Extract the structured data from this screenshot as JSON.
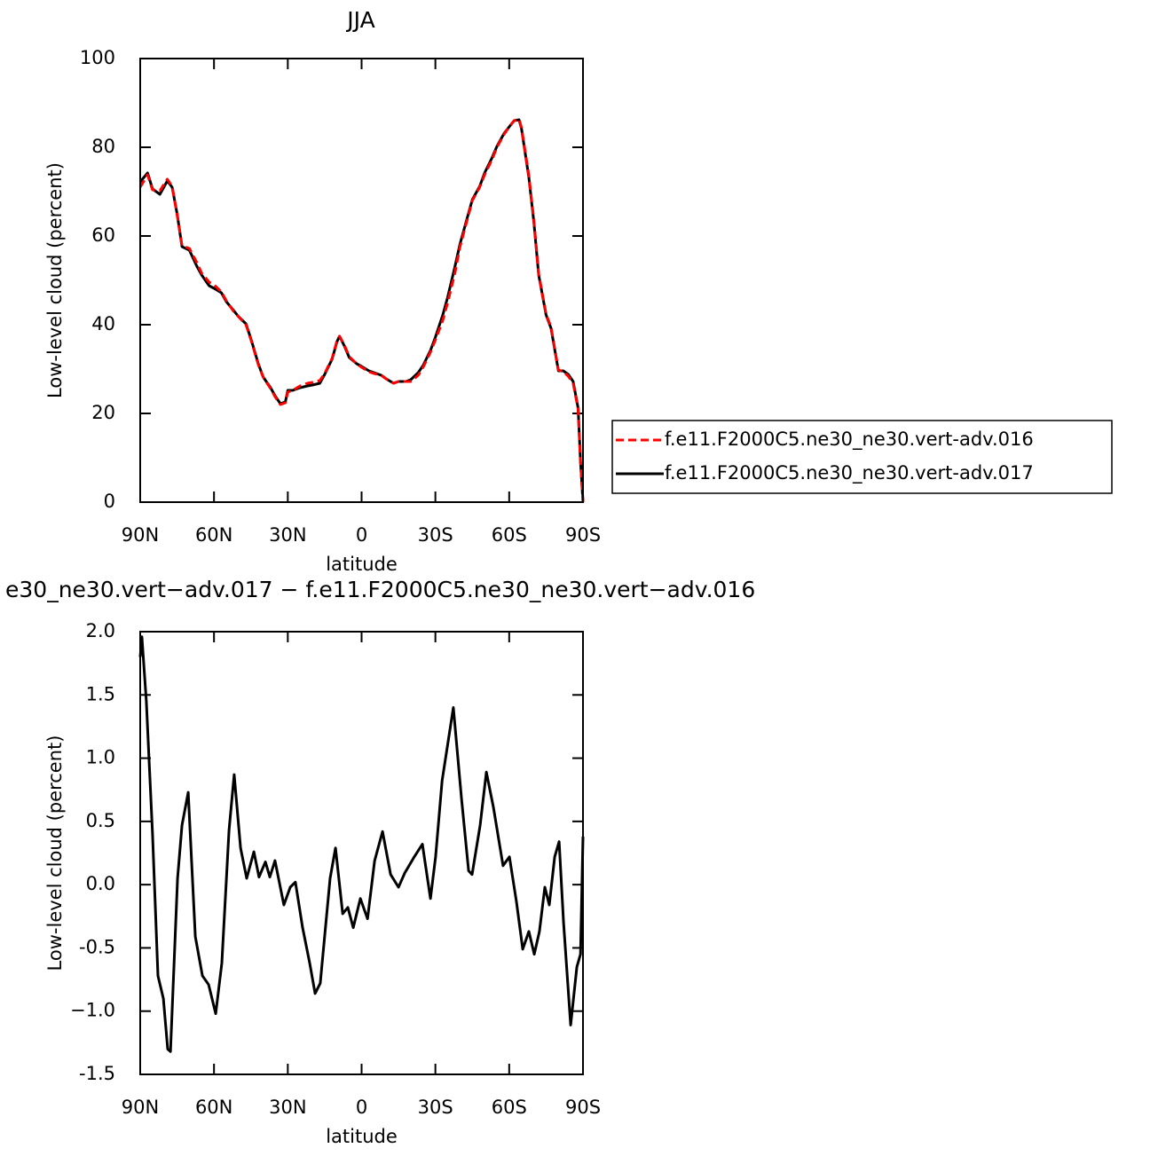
{
  "chart_data": [
    {
      "type": "line",
      "title": "JJA",
      "xlabel": "latitude",
      "ylabel": "Low-level cloud (percent)",
      "xlim": [
        90,
        -90
      ],
      "xticks": [
        {
          "value": 90,
          "label": "90N"
        },
        {
          "value": 60,
          "label": "60N"
        },
        {
          "value": 30,
          "label": "30N"
        },
        0,
        {
          "value": -30,
          "label": "30S"
        },
        {
          "value": -60,
          "label": "60S"
        },
        {
          "value": -90,
          "label": "90S"
        }
      ],
      "ylim": [
        0,
        100
      ],
      "yticks": [
        0,
        20,
        40,
        60,
        80,
        100
      ],
      "legend": "outside-right",
      "x": [
        90,
        87,
        85,
        82,
        79,
        77,
        75,
        73,
        70,
        67,
        65,
        62,
        60,
        57,
        55,
        52,
        50,
        47,
        45,
        42,
        40,
        37,
        35,
        33,
        31,
        30,
        28,
        25,
        22,
        20,
        17,
        15,
        12,
        10,
        9,
        7,
        5,
        2,
        0,
        -3,
        -5,
        -8,
        -10,
        -13,
        -15,
        -18,
        -20,
        -23,
        -25,
        -28,
        -30,
        -33,
        -35,
        -38,
        -40,
        -43,
        -45,
        -48,
        -50,
        -53,
        -55,
        -58,
        -60,
        -62,
        -64,
        -65,
        -68,
        -70,
        -72,
        -75,
        -77,
        -80,
        -82,
        -84,
        -86,
        -88,
        -89,
        -90
      ],
      "series": [
        {
          "name": "f.e11.F2000C5.ne30_ne30.vert-adv.016",
          "color": "#ff0000",
          "dash": true,
          "values": [
            71,
            73.8,
            70.4,
            70.2,
            72.8,
            71.2,
            64.8,
            57.8,
            57.2,
            54,
            51.6,
            49.6,
            49,
            47.4,
            45.4,
            43,
            41.8,
            40,
            36.6,
            31,
            28.2,
            25.6,
            23.6,
            22,
            22.4,
            24.8,
            25.2,
            26.2,
            26.8,
            27,
            27.4,
            29,
            32.4,
            36.4,
            37.4,
            35.4,
            32.8,
            31.2,
            30.4,
            29.4,
            29,
            28.6,
            27.8,
            26.8,
            27.2,
            27.2,
            27.2,
            28.6,
            30.4,
            33.8,
            36.6,
            41,
            45,
            51.8,
            57.6,
            63.8,
            68,
            71,
            73.8,
            77.2,
            80,
            83,
            84.6,
            86,
            86.4,
            84.4,
            73.6,
            63.6,
            51.4,
            42.4,
            39.4,
            29.8,
            29.4,
            28.4,
            26.8,
            21,
            9,
            0
          ]
        },
        {
          "name": "f.e11.F2000C5.ne30_ne30.vert-adv.017",
          "color": "#000000",
          "dash": false,
          "values": [
            72.2,
            74.2,
            70.6,
            69.4,
            72.4,
            71,
            65,
            57.6,
            56.8,
            53.2,
            51.2,
            48.8,
            48.2,
            47.2,
            45.2,
            43.2,
            41.8,
            40.2,
            36.8,
            31.2,
            28.2,
            25.8,
            23.8,
            22.2,
            22.6,
            25.2,
            25.2,
            25.8,
            26.2,
            26.4,
            26.8,
            28.8,
            32.2,
            36.2,
            37.4,
            35.2,
            32.6,
            31.2,
            30.6,
            29.6,
            29.2,
            28.6,
            27.8,
            26.8,
            27.2,
            27.2,
            27.6,
            29.2,
            30.8,
            34.2,
            37.2,
            42.2,
            46.2,
            53.2,
            58.2,
            64.2,
            68.2,
            71.2,
            74.2,
            77.6,
            80.2,
            83.2,
            84.6,
            86,
            86.2,
            84.2,
            73.2,
            63.2,
            51.2,
            42.2,
            39.2,
            29.6,
            29.6,
            28.8,
            27.2,
            21.2,
            9.2,
            0
          ]
        }
      ]
    },
    {
      "type": "line",
      "title": "e30_ne30.vert−adv.017 − f.e11.F2000C5.ne30_ne30.vert−adv.016",
      "xlabel": "latitude",
      "ylabel": "Low-level cloud (percent)",
      "xlim": [
        90,
        -90
      ],
      "xticks": [
        {
          "value": 90,
          "label": "90N"
        },
        {
          "value": 60,
          "label": "60N"
        },
        {
          "value": 30,
          "label": "30N"
        },
        0,
        {
          "value": -30,
          "label": "30S"
        },
        {
          "value": -60,
          "label": "60S"
        },
        {
          "value": -90,
          "label": "90S"
        }
      ],
      "ylim": [
        -1.5,
        2
      ],
      "yticks": [
        -1.5,
        {
          "value": -1,
          "label": "−1.0"
        },
        -0.5,
        {
          "value": 0,
          "label": "0.0"
        },
        0.5,
        {
          "value": 1,
          "label": "1.0"
        },
        1.5,
        {
          "value": 2,
          "label": "2.0"
        }
      ],
      "x": [
        90,
        89.3,
        87.5,
        85,
        82.8,
        80.6,
        78.8,
        77.7,
        74.8,
        73,
        70.5,
        67.6,
        64.7,
        62.2,
        59.3,
        56.8,
        53.9,
        51.8,
        49.2,
        46.7,
        43.8,
        41.7,
        39.1,
        37.3,
        35.2,
        31.6,
        29,
        26.9,
        24,
        21.1,
        18.9,
        16.8,
        12.8,
        10.6,
        7.7,
        5.6,
        3.4,
        0.5,
        -2.4,
        -5.3,
        -8.5,
        -11.8,
        -15,
        -17.5,
        -21.1,
        -24.7,
        -28,
        -30.1,
        -32.7,
        -37.3,
        -40.6,
        -43.5,
        -44.9,
        -48.2,
        -50.7,
        -53.6,
        -57.5,
        -60.1,
        -62.9,
        -65.5,
        -68,
        -70.2,
        -72.3,
        -74.5,
        -76.3,
        -78.5,
        -80.3,
        -82.1,
        -85,
        -87.5,
        -89,
        -90
      ],
      "series": [
        {
          "color": "#000000",
          "dash": false,
          "values": [
            1.8,
            1.96,
            1.45,
            0.4,
            -0.72,
            -0.9,
            -1.3,
            -1.32,
            0.05,
            0.47,
            0.73,
            -0.41,
            -0.72,
            -0.79,
            -1.02,
            -0.62,
            0.43,
            0.87,
            0.29,
            0.05,
            0.26,
            0.06,
            0.18,
            0.06,
            0.19,
            -0.16,
            -0.02,
            0.02,
            -0.34,
            -0.62,
            -0.86,
            -0.78,
            0.05,
            0.29,
            -0.23,
            -0.18,
            -0.34,
            -0.11,
            -0.27,
            0.19,
            0.42,
            0.08,
            -0.02,
            0.09,
            0.21,
            0.32,
            -0.11,
            0.22,
            0.82,
            1.4,
            0.68,
            0.11,
            0.08,
            0.47,
            0.89,
            0.61,
            0.15,
            0.22,
            -0.13,
            -0.51,
            -0.37,
            -0.55,
            -0.37,
            -0.02,
            -0.16,
            0.22,
            0.34,
            -0.3,
            -1.11,
            -0.65,
            -0.55,
            0.38
          ]
        }
      ]
    }
  ]
}
